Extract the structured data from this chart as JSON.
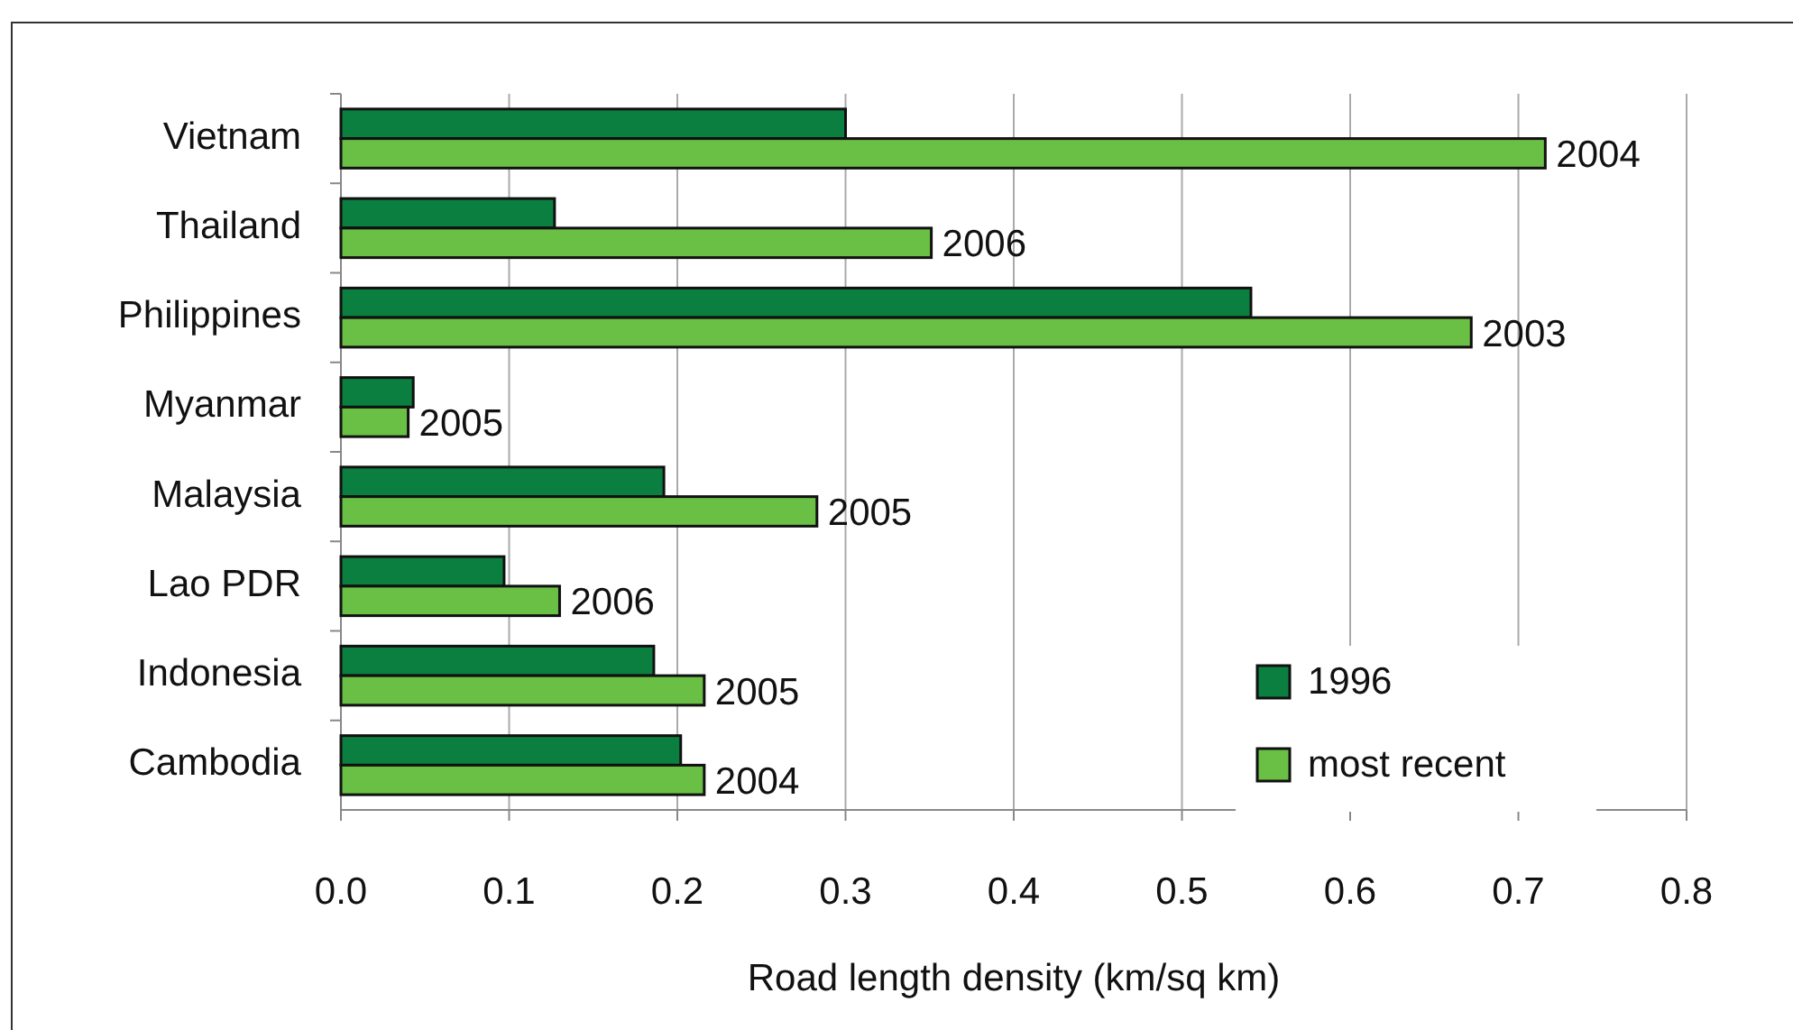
{
  "chart_data": {
    "type": "bar",
    "orientation": "horizontal",
    "xlabel": "Road length density (km/sq km)",
    "categories": [
      "Vietnam",
      "Thailand",
      "Philippines",
      "Myanmar",
      "Malaysia",
      "Lao PDR",
      "Indonesia",
      "Cambodia"
    ],
    "series": [
      {
        "name": "1996",
        "color": "#0a7f3f",
        "values": [
          0.3,
          0.127,
          0.541,
          0.043,
          0.192,
          0.097,
          0.186,
          0.202
        ]
      },
      {
        "name": "most recent",
        "color": "#6abf45",
        "values": [
          0.716,
          0.351,
          0.672,
          0.04,
          0.283,
          0.13,
          0.216,
          0.216
        ]
      }
    ],
    "annotations": [
      {
        "text": "2004",
        "x": 0.716,
        "y": "Vietnam"
      },
      {
        "text": "2006",
        "x": 0.351,
        "y": "Thailand"
      },
      {
        "text": "2003",
        "x": 0.672,
        "y": "Philippines"
      },
      {
        "text": "2005",
        "x": 0.04,
        "y": "Myanmar"
      },
      {
        "text": "2005",
        "x": 0.283,
        "y": "Malaysia"
      },
      {
        "text": "2006",
        "x": 0.13,
        "y": "Lao PDR"
      },
      {
        "text": "2005",
        "x": 0.216,
        "y": "Indonesia"
      },
      {
        "text": "2004",
        "x": 0.216,
        "y": "Cambodia"
      }
    ],
    "xlim": [
      0,
      0.8
    ],
    "xticks": [
      {
        "value": 0,
        "label": "0.0"
      },
      0.1,
      0.2,
      0.3,
      0.4,
      0.5,
      0.6,
      0.7,
      0.8
    ],
    "grid": "x",
    "legend": "bottom right"
  }
}
